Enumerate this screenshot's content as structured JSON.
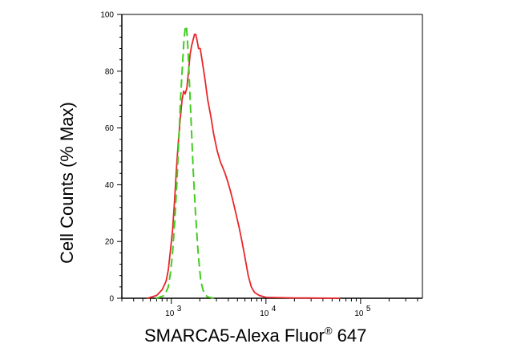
{
  "chart_data": {
    "type": "line",
    "xlabel": "SMARCA5-Alexa Fluor",
    "xlabel_reg_mark": "®",
    "xlabel_suffix": " 647",
    "ylabel": "Cell Counts (% Max)",
    "x_scale": "log",
    "xlim": [
      300,
      450000
    ],
    "ylim": [
      0,
      100
    ],
    "y_ticks": [
      0,
      20,
      40,
      60,
      80,
      100
    ],
    "x_tick_labels": [
      {
        "base": "10",
        "exp": "3",
        "value": 1000
      },
      {
        "base": "10",
        "exp": "4",
        "value": 10000
      },
      {
        "base": "10",
        "exp": "5",
        "value": 100000
      }
    ],
    "series": [
      {
        "style": "solid",
        "color": "#e8262a",
        "points": [
          [
            560,
            0
          ],
          [
            700,
            1
          ],
          [
            800,
            3
          ],
          [
            880,
            6
          ],
          [
            930,
            10
          ],
          [
            980,
            17
          ],
          [
            1030,
            24
          ],
          [
            1080,
            34
          ],
          [
            1130,
            45
          ],
          [
            1180,
            54
          ],
          [
            1240,
            63
          ],
          [
            1300,
            70
          ],
          [
            1350,
            73
          ],
          [
            1400,
            72
          ],
          [
            1460,
            74
          ],
          [
            1520,
            80
          ],
          [
            1580,
            86
          ],
          [
            1640,
            89
          ],
          [
            1700,
            91
          ],
          [
            1760,
            93
          ],
          [
            1810,
            93
          ],
          [
            1870,
            91
          ],
          [
            1940,
            88
          ],
          [
            2020,
            88
          ],
          [
            2090,
            85
          ],
          [
            2180,
            81
          ],
          [
            2270,
            77
          ],
          [
            2420,
            70
          ],
          [
            2620,
            64
          ],
          [
            2800,
            58
          ],
          [
            3050,
            52
          ],
          [
            3300,
            48
          ],
          [
            3500,
            46
          ],
          [
            3700,
            44
          ],
          [
            3950,
            41
          ],
          [
            4200,
            38
          ],
          [
            4500,
            34
          ],
          [
            4800,
            30
          ],
          [
            5200,
            25
          ],
          [
            5500,
            21
          ],
          [
            5800,
            17
          ],
          [
            6100,
            13
          ],
          [
            6500,
            8
          ],
          [
            7000,
            4
          ],
          [
            7600,
            2
          ],
          [
            8500,
            1
          ],
          [
            10000,
            0.3
          ],
          [
            20000,
            0.1
          ],
          [
            60000,
            0
          ]
        ]
      },
      {
        "style": "dashed",
        "color": "#44cc22",
        "points": [
          [
            700,
            0
          ],
          [
            850,
            1
          ],
          [
            930,
            4
          ],
          [
            980,
            9
          ],
          [
            1030,
            16
          ],
          [
            1090,
            28
          ],
          [
            1150,
            42
          ],
          [
            1200,
            56
          ],
          [
            1250,
            70
          ],
          [
            1310,
            82
          ],
          [
            1360,
            91
          ],
          [
            1410,
            96
          ],
          [
            1450,
            95
          ],
          [
            1500,
            88
          ],
          [
            1560,
            75
          ],
          [
            1630,
            60
          ],
          [
            1700,
            46
          ],
          [
            1800,
            30
          ],
          [
            1920,
            16
          ],
          [
            2050,
            6
          ],
          [
            2200,
            2
          ],
          [
            2400,
            0.5
          ],
          [
            2800,
            0
          ]
        ]
      }
    ]
  }
}
